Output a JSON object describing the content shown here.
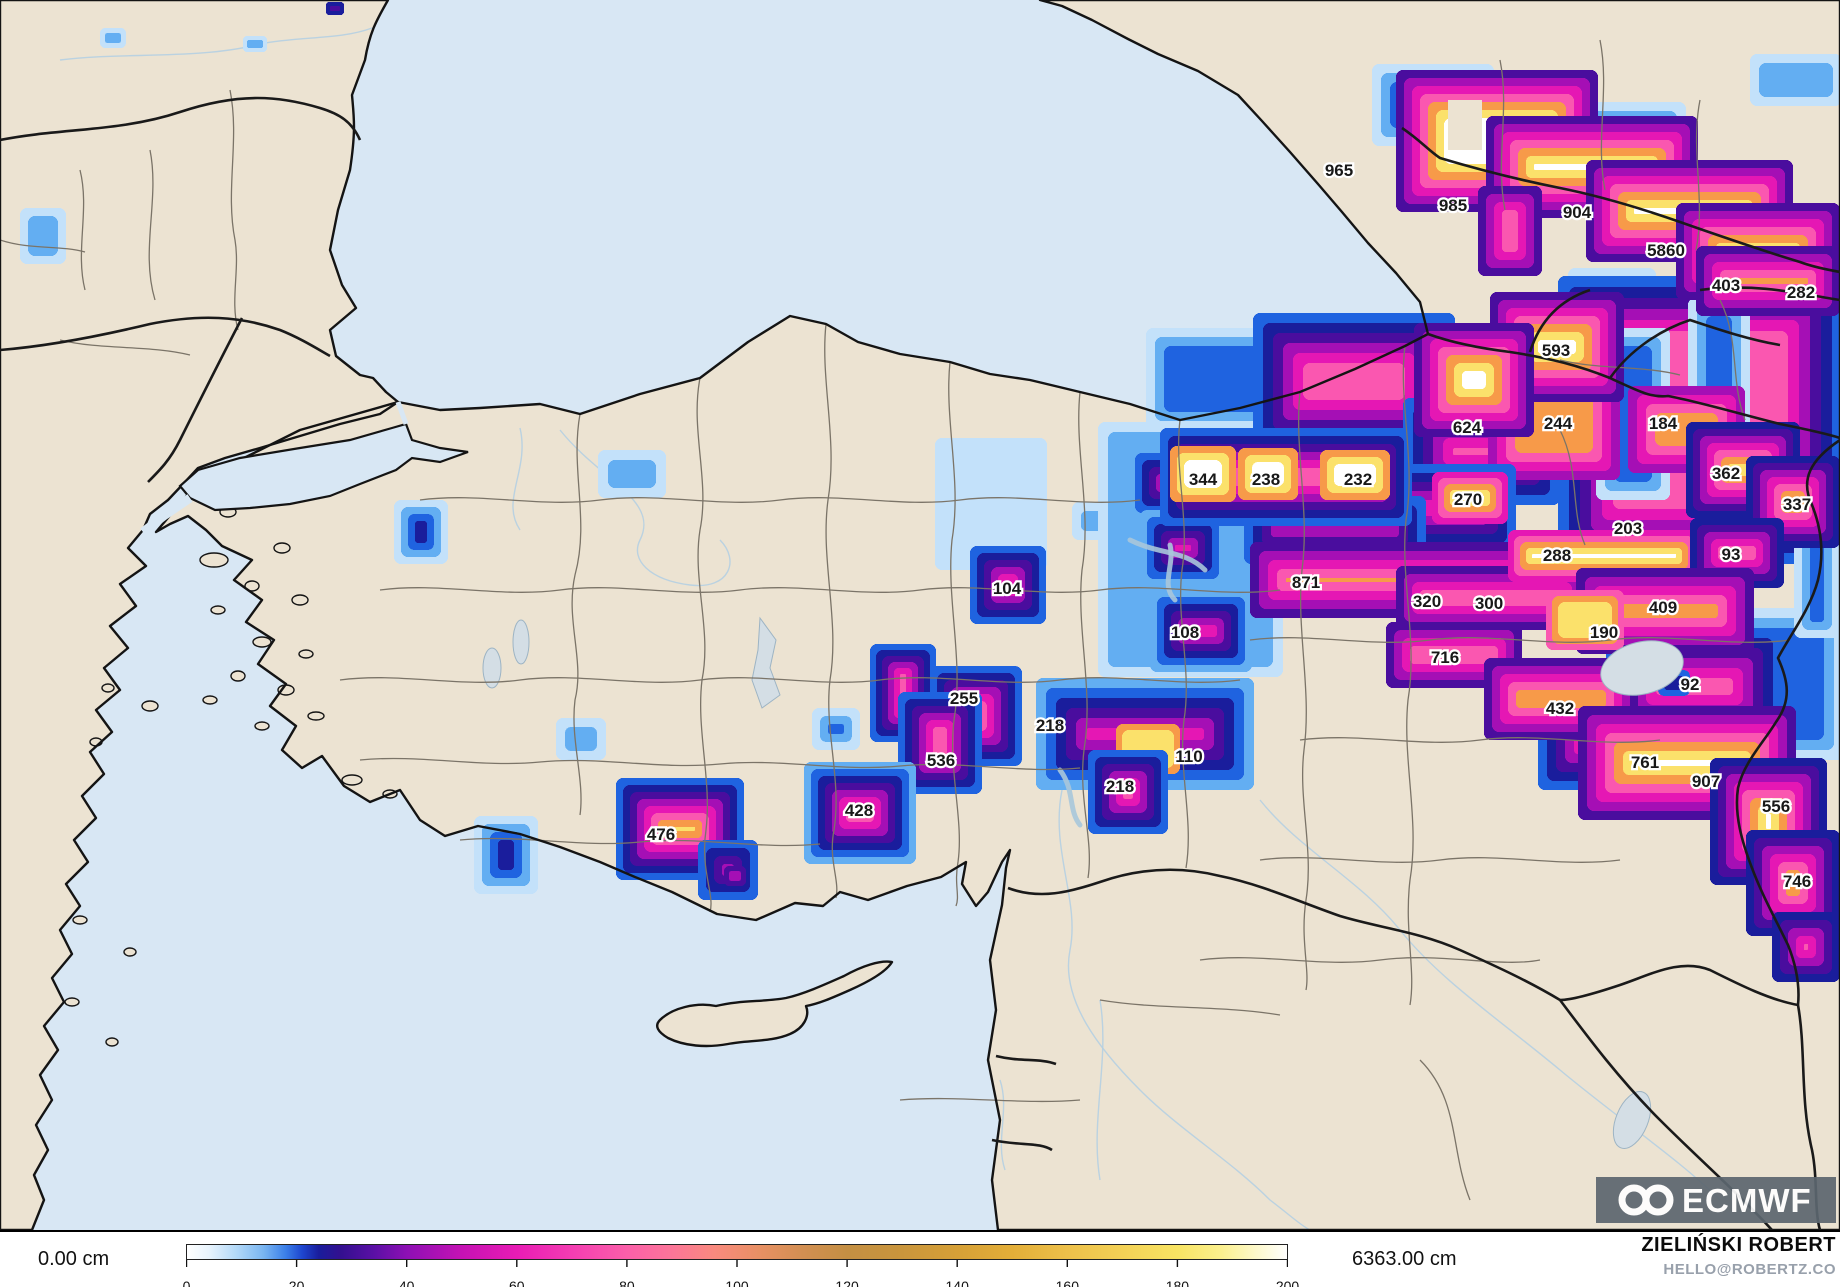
{
  "attribution": {
    "name": "ZIELIŃSKI ROBERT",
    "email": "HELLO@ROBERTZ.CO",
    "logo_text": "ECMWF"
  },
  "colorbar": {
    "min_label": "0.00 cm",
    "max_label": "6363.00 cm",
    "ticks": [
      0,
      20,
      40,
      60,
      80,
      100,
      120,
      140,
      160,
      180,
      200
    ],
    "stops": [
      [
        0,
        "#ffffff"
      ],
      [
        0.02,
        "#e9f4fd"
      ],
      [
        0.045,
        "#b3d9f8"
      ],
      [
        0.07,
        "#79b5f1"
      ],
      [
        0.09,
        "#3b7fe8"
      ],
      [
        0.105,
        "#1e46cf"
      ],
      [
        0.12,
        "#191d9c"
      ],
      [
        0.14,
        "#33108f"
      ],
      [
        0.17,
        "#5a10a5"
      ],
      [
        0.2,
        "#8d10b4"
      ],
      [
        0.25,
        "#c512b4"
      ],
      [
        0.3,
        "#e81cb5"
      ],
      [
        0.35,
        "#f43db2"
      ],
      [
        0.4,
        "#fb5fa9"
      ],
      [
        0.44,
        "#fc7599"
      ],
      [
        0.48,
        "#f98a7e"
      ],
      [
        0.52,
        "#e89064"
      ],
      [
        0.56,
        "#d28f52"
      ],
      [
        0.6,
        "#c48f43"
      ],
      [
        0.65,
        "#c9953c"
      ],
      [
        0.7,
        "#d6a037"
      ],
      [
        0.75,
        "#e3ae38"
      ],
      [
        0.8,
        "#edc04a"
      ],
      [
        0.85,
        "#f3d156"
      ],
      [
        0.9,
        "#f8e463"
      ],
      [
        0.94,
        "#fbf08e"
      ],
      [
        0.97,
        "#fdf8c8"
      ],
      [
        1,
        "#ffffff"
      ]
    ]
  },
  "map_colors": {
    "sea": "#d8e7f4",
    "land": "#ece3d2",
    "lake": "#d4dee5",
    "country_border": "#1a1a1a",
    "province_border": "#7b7468",
    "logo_panel": "#5c666f"
  },
  "snow": {
    "palette": [
      "#c3e1fa",
      "#63aef2",
      "#1f63e0",
      "#1a1d9c",
      "#4a0d9e",
      "#a50fb5",
      "#e517b4",
      "#fa57b0",
      "#f79a49",
      "#fbe16b",
      "#ffffff"
    ],
    "blobs": [
      [
        100,
        28,
        26,
        20,
        0,
        2,
        5
      ],
      [
        243,
        36,
        24,
        16,
        0,
        2,
        4
      ],
      [
        326,
        2,
        18,
        13,
        3,
        5,
        4
      ],
      [
        20,
        208,
        46,
        56,
        0,
        2,
        8
      ],
      [
        598,
        450,
        68,
        48,
        0,
        2,
        10
      ],
      [
        1072,
        502,
        44,
        38,
        0,
        2,
        9
      ],
      [
        556,
        718,
        50,
        42,
        0,
        2,
        9
      ],
      [
        812,
        708,
        48,
        42,
        0,
        3,
        8
      ],
      [
        394,
        500,
        54,
        64,
        0,
        5,
        7
      ],
      [
        474,
        816,
        64,
        78,
        0,
        5,
        8
      ],
      [
        935,
        438,
        112,
        132,
        0,
        1,
        10
      ],
      [
        1098,
        422,
        185,
        255,
        0,
        2,
        10
      ],
      [
        1146,
        328,
        132,
        102,
        0,
        3,
        9
      ],
      [
        1372,
        64,
        122,
        82,
        0,
        3,
        9
      ],
      [
        1554,
        102,
        132,
        96,
        0,
        3,
        9
      ],
      [
        1750,
        54,
        92,
        52,
        0,
        2,
        9
      ],
      [
        1568,
        268,
        88,
        50,
        0,
        3,
        8
      ],
      [
        1793,
        291,
        47,
        50,
        0,
        3,
        8
      ],
      [
        1734,
        608,
        110,
        152,
        0,
        3,
        10
      ],
      [
        1128,
        446,
        82,
        74,
        1,
        7,
        7
      ],
      [
        1140,
        510,
        86,
        76,
        1,
        8,
        7
      ],
      [
        1150,
        590,
        102,
        82,
        1,
        8,
        7
      ],
      [
        1253,
        313,
        202,
        137,
        2,
        8,
        10
      ],
      [
        1403,
        398,
        157,
        107,
        2,
        8,
        10
      ],
      [
        1558,
        276,
        285,
        288,
        2,
        8,
        11
      ],
      [
        1596,
        328,
        74,
        172,
        0,
        3,
        9
      ],
      [
        1688,
        298,
        62,
        132,
        0,
        3,
        9
      ],
      [
        1488,
        363,
        132,
        117,
        5,
        9,
        9
      ],
      [
        1628,
        386,
        117,
        87,
        5,
        9,
        9
      ],
      [
        1374,
        464,
        142,
        88,
        2,
        8,
        9
      ],
      [
        1244,
        496,
        182,
        68,
        2,
        7,
        9
      ],
      [
        1606,
        628,
        177,
        117,
        2,
        8,
        10
      ],
      [
        1538,
        696,
        87,
        94,
        2,
        7,
        9
      ],
      [
        1794,
        504,
        46,
        134,
        0,
        6,
        8
      ],
      [
        970,
        546,
        76,
        78,
        2,
        8,
        7
      ],
      [
        870,
        644,
        66,
        98,
        2,
        10,
        6
      ],
      [
        930,
        666,
        92,
        100,
        2,
        9,
        7
      ],
      [
        1036,
        678,
        218,
        112,
        1,
        8,
        10
      ],
      [
        1116,
        724,
        64,
        50,
        8,
        10,
        6
      ],
      [
        1088,
        750,
        80,
        84,
        2,
        10,
        7
      ],
      [
        898,
        692,
        84,
        102,
        2,
        11,
        7
      ],
      [
        804,
        762,
        112,
        102,
        1,
        11,
        7
      ],
      [
        616,
        778,
        128,
        102,
        2,
        11,
        7
      ],
      [
        698,
        840,
        60,
        60,
        2,
        7,
        8
      ],
      [
        724,
        866,
        22,
        20,
        4,
        6,
        5
      ],
      [
        1396,
        70,
        202,
        142,
        4,
        11,
        8
      ],
      [
        1486,
        116,
        212,
        102,
        4,
        11,
        8
      ],
      [
        1586,
        160,
        207,
        102,
        4,
        11,
        8
      ],
      [
        1676,
        203,
        164,
        97,
        4,
        11,
        8
      ],
      [
        1696,
        246,
        144,
        70,
        4,
        11,
        8
      ],
      [
        1478,
        186,
        64,
        90,
        4,
        11,
        8
      ],
      [
        1490,
        292,
        134,
        110,
        4,
        11,
        8
      ],
      [
        1414,
        323,
        120,
        114,
        4,
        11,
        8
      ],
      [
        1686,
        422,
        114,
        96,
        3,
        11,
        7
      ],
      [
        1746,
        456,
        94,
        92,
        3,
        11,
        7
      ],
      [
        1160,
        428,
        252,
        98,
        2,
        8,
        8
      ],
      [
        1170,
        446,
        66,
        56,
        8,
        11,
        7
      ],
      [
        1238,
        448,
        60,
        52,
        8,
        11,
        7
      ],
      [
        1320,
        450,
        70,
        50,
        8,
        11,
        7
      ],
      [
        1432,
        472,
        76,
        52,
        6,
        11,
        6
      ],
      [
        1250,
        542,
        318,
        76,
        4,
        11,
        9
      ],
      [
        1396,
        566,
        192,
        64,
        4,
        11,
        8
      ],
      [
        1508,
        530,
        192,
        52,
        6,
        11,
        6
      ],
      [
        1690,
        518,
        94,
        70,
        3,
        11,
        7
      ],
      [
        1576,
        568,
        178,
        86,
        4,
        11,
        9
      ],
      [
        1546,
        590,
        78,
        60,
        7,
        10,
        6
      ],
      [
        1386,
        622,
        136,
        66,
        4,
        11,
        8
      ],
      [
        1484,
        658,
        154,
        82,
        4,
        11,
        8
      ],
      [
        1578,
        706,
        218,
        114,
        4,
        11,
        9
      ],
      [
        1710,
        758,
        117,
        127,
        3,
        11,
        8
      ],
      [
        1746,
        830,
        94,
        106,
        3,
        11,
        8
      ],
      [
        1772,
        912,
        68,
        70,
        3,
        8,
        8
      ],
      [
        1658,
        670,
        32,
        26,
        2,
        4,
        6
      ]
    ],
    "labels": [
      [
        965,
        1339,
        170
      ],
      [
        985,
        1453,
        205
      ],
      [
        904,
        1577,
        212
      ],
      [
        5860,
        1666,
        250
      ],
      [
        403,
        1726,
        285
      ],
      [
        282,
        1801,
        292
      ],
      [
        593,
        1556,
        350
      ],
      [
        624,
        1467,
        427
      ],
      [
        244,
        1558,
        423
      ],
      [
        184,
        1663,
        423
      ],
      [
        362,
        1726,
        473
      ],
      [
        337,
        1797,
        504
      ],
      [
        344,
        1203,
        479
      ],
      [
        238,
        1266,
        479
      ],
      [
        232,
        1358,
        479
      ],
      [
        270,
        1468,
        499
      ],
      [
        203,
        1628,
        528
      ],
      [
        288,
        1557,
        555
      ],
      [
        93,
        1731,
        554
      ],
      [
        871,
        1306,
        582
      ],
      [
        320,
        1427,
        601
      ],
      [
        300,
        1489,
        603
      ],
      [
        409,
        1663,
        607
      ],
      [
        190,
        1604,
        632
      ],
      [
        716,
        1445,
        657
      ],
      [
        92,
        1690,
        684
      ],
      [
        432,
        1560,
        708
      ],
      [
        761,
        1645,
        762
      ],
      [
        907,
        1706,
        781
      ],
      [
        556,
        1776,
        806
      ],
      [
        746,
        1797,
        881
      ],
      [
        104,
        1007,
        588
      ],
      [
        108,
        1185,
        632
      ],
      [
        255,
        964,
        698
      ],
      [
        218,
        1050,
        725
      ],
      [
        110,
        1189,
        756
      ],
      [
        218,
        1120,
        786
      ],
      [
        536,
        941,
        760
      ],
      [
        428,
        859,
        810
      ],
      [
        476,
        661,
        834
      ]
    ]
  }
}
